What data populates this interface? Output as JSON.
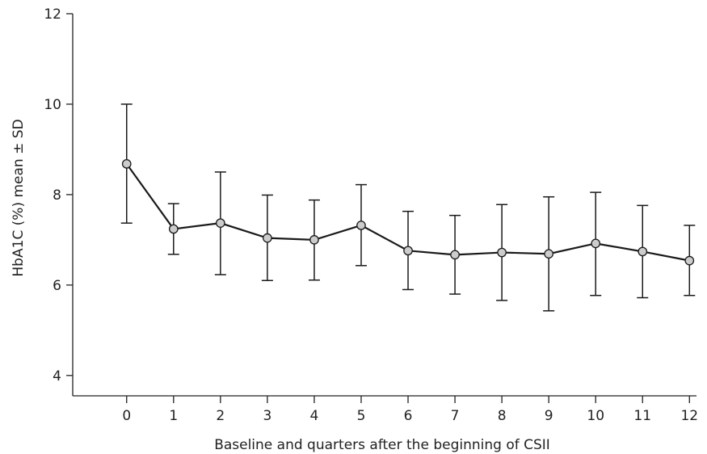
{
  "chart_data": {
    "type": "line",
    "title": "",
    "xlabel": "Baseline and quarters after the beginning of CSII",
    "ylabel": "HbA1C (%) mean ± SD",
    "x": [
      0,
      1,
      2,
      3,
      4,
      5,
      6,
      7,
      8,
      9,
      10,
      11,
      12
    ],
    "x_tick_labels": [
      "0",
      "1",
      "2",
      "3",
      "4",
      "5",
      "6",
      "7",
      "8",
      "9",
      "10",
      "11",
      "12"
    ],
    "y_tick_labels": [
      "4",
      "6",
      "8",
      "10",
      "12"
    ],
    "y_ticks": [
      4,
      6,
      8,
      10,
      12
    ],
    "xlim": [
      -1.15,
      12.15
    ],
    "ylim": [
      3.55,
      12
    ],
    "series": [
      {
        "values": [
          8.68,
          7.24,
          7.37,
          7.04,
          7.0,
          7.32,
          6.76,
          6.67,
          6.72,
          6.69,
          6.92,
          6.74,
          6.54
        ],
        "error_low": [
          7.37,
          6.68,
          6.23,
          6.1,
          6.11,
          6.43,
          5.9,
          5.8,
          5.66,
          5.43,
          5.77,
          5.72,
          5.77
        ],
        "error_high": [
          10.0,
          7.8,
          8.5,
          7.99,
          7.88,
          8.22,
          7.63,
          7.54,
          7.78,
          7.95,
          8.05,
          7.76,
          7.32
        ]
      }
    ],
    "grid": false,
    "legend": "none",
    "colors": {
      "line": "#1a1a1a",
      "marker_fill": "#cccccc",
      "axis": "#222222"
    }
  }
}
